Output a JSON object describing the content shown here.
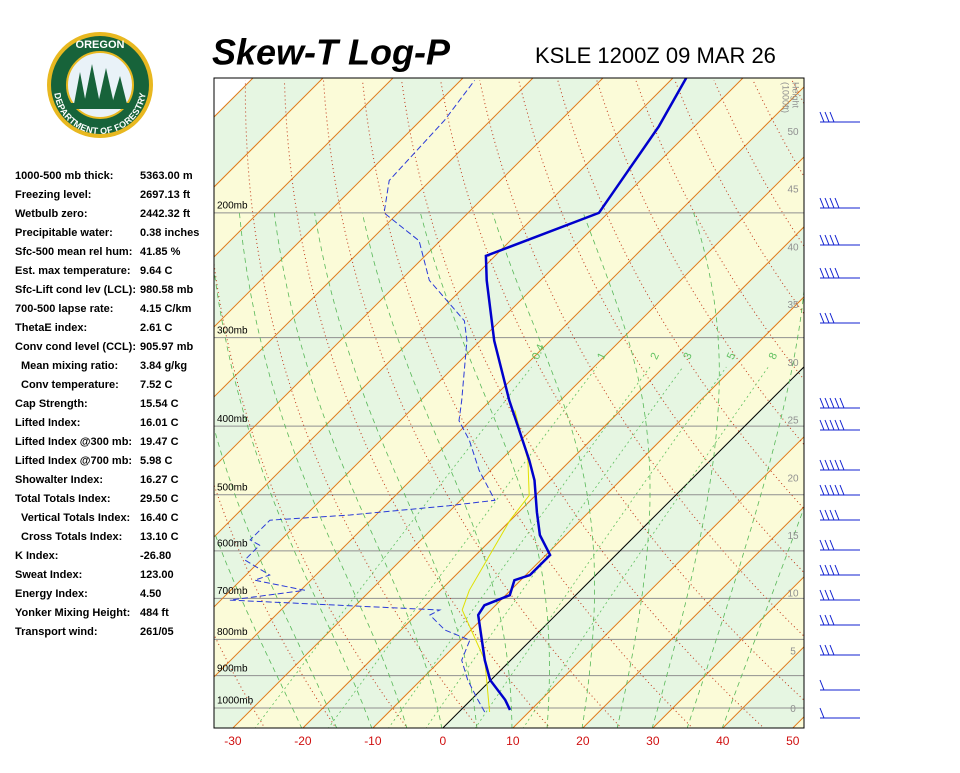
{
  "header": {
    "title": "Skew-T Log-P",
    "station": "KSLE 1200Z 09 MAR 26"
  },
  "logo": {
    "top": "OREGON",
    "bottom": "DEPARTMENT OF FORESTRY"
  },
  "indices": [
    [
      "1000-500 mb thick:",
      "5363.00 m"
    ],
    [
      "Freezing level:",
      "2697.13 ft"
    ],
    [
      "Wetbulb zero:",
      "2442.32 ft"
    ],
    [
      "Precipitable water:",
      "0.38 inches"
    ],
    [
      "Sfc-500 mean rel hum:",
      "41.85 %"
    ],
    [
      "Est. max temperature:",
      "9.64 C"
    ],
    [
      "Sfc-Lift cond lev (LCL):",
      "980.58 mb"
    ],
    [
      "700-500 lapse rate:",
      "4.15 C/km"
    ],
    [
      "ThetaE index:",
      "2.61 C"
    ],
    [
      "Conv cond level (CCL):",
      "905.97 mb"
    ],
    [
      "Mean mixing ratio:",
      "3.84 g/kg"
    ],
    [
      "Conv temperature:",
      "7.52 C"
    ],
    [
      "Cap Strength:",
      "15.54 C"
    ],
    [
      "Lifted Index:",
      "16.01 C"
    ],
    [
      "Lifted Index @300 mb:",
      "19.47 C"
    ],
    [
      "Lifted Index @700 mb:",
      "5.98 C"
    ],
    [
      "Showalter Index:",
      "16.27 C"
    ],
    [
      "Total Totals Index:",
      "29.50 C"
    ],
    [
      "Vertical Totals Index:",
      "16.40 C"
    ],
    [
      "Cross Totals Index:",
      "13.10 C"
    ],
    [
      "K Index:",
      "-26.80"
    ],
    [
      "Sweat Index:",
      "123.00"
    ],
    [
      "Energy Index:",
      "4.50"
    ],
    [
      "Yonker Mixing Height:",
      "484 ft"
    ],
    [
      "Transport wind:",
      "261/05"
    ]
  ],
  "diagram": {
    "xlim": [
      -32.7,
      51.6
    ],
    "xticks": [
      -30,
      -20,
      -10,
      0,
      10,
      20,
      30,
      40,
      50
    ],
    "ylim": [
      1067,
      129
    ],
    "log_scale": true,
    "pressure_levels": [
      {
        "value": 200,
        "label": "200mb"
      },
      {
        "value": 300,
        "label": "300mb"
      },
      {
        "value": 400,
        "label": "400mb"
      },
      {
        "value": 500,
        "label": "500mb"
      },
      {
        "value": 600,
        "label": "600mb"
      },
      {
        "value": 700,
        "label": "700mb"
      },
      {
        "value": 800,
        "label": "800mb"
      },
      {
        "value": 900,
        "label": "900mb"
      },
      {
        "value": 1000,
        "label": "1000mb"
      }
    ],
    "height_axis": {
      "label": "Height",
      "units": "(1000ft)",
      "ylim": [
        -1.6,
        54.7
      ],
      "ticks": [
        0,
        5,
        10,
        15,
        20,
        25,
        30,
        35,
        40,
        45,
        50
      ]
    },
    "mixing_ratios": [
      0.4,
      1,
      2,
      3,
      5,
      8
    ],
    "temperature": {
      "color": "#0000cc",
      "pressure": [
        1006,
        974,
        913,
        856,
        739,
        716,
        693,
        660,
        649,
        608,
        570,
        529,
        477,
        447,
        368,
        303,
        249,
        230,
        200,
        151,
        129
      ],
      "values": [
        7.0,
        4.9,
        -0.1,
        -3.7,
        -11.1,
        -11.6,
        -9.4,
        -10.9,
        -9.4,
        -9.4,
        -13.7,
        -17.4,
        -22.3,
        -25.9,
        -37.3,
        -48.0,
        -57.7,
        -61.3,
        -51.3,
        -55.1,
        -58.1
      ]
    },
    "dewpoint": {
      "color": "#2a3ad8",
      "pressure": [
        1013,
        974,
        913,
        856,
        802,
        776,
        739,
        727,
        704,
        682,
        660,
        649,
        618,
        589,
        579,
        543,
        534,
        518,
        509,
        462,
        419,
        393,
        368,
        303,
        284,
        249,
        219,
        200,
        180,
        148,
        130
      ],
      "values": [
        3.7,
        1.0,
        -3.3,
        -7.0,
        -8.7,
        -13.7,
        -18.0,
        -17.3,
        -48.7,
        -39.4,
        -48.0,
        -46.6,
        -52.3,
        -52.3,
        -54.4,
        -54.4,
        -43.7,
        -30.9,
        -25.1,
        -31.6,
        -37.3,
        -41.6,
        -44.1,
        -51.9,
        -55.1,
        -65.9,
        -73.0,
        -82.0,
        -85.9,
        -86.6,
        -88.0
      ]
    },
    "parcel": {
      "color": "#e0e000",
      "pressure": [
        1013,
        856,
        727,
        682,
        543,
        501,
        447,
        380
      ],
      "values": [
        4.4,
        -3.7,
        -14.1,
        -15.9,
        -20.1,
        -20.9,
        -26.1,
        -35.1
      ]
    }
  }
}
